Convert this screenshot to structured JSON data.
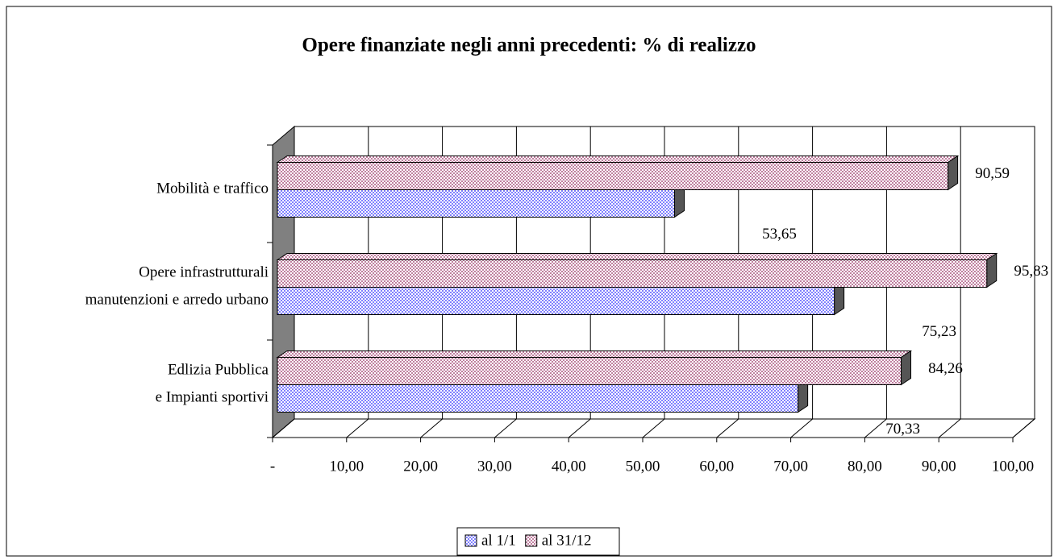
{
  "chart_data": {
    "type": "bar3d_horizontal",
    "title": "Opere finanziate negli anni precedenti: % di realizzo",
    "categories": [
      "Edlizia Pubblica\ne Impianti sportivi",
      "Opere infrastrutturali\nmanutenzioni e arredo urbano",
      "Mobilità e traffico"
    ],
    "series": [
      {
        "name": "al 1/1",
        "color": "#8080ff",
        "values": [
          70.33,
          75.23,
          53.65
        ],
        "value_labels": [
          "70,33",
          "75,23",
          "53,65"
        ]
      },
      {
        "name": "al 31/12",
        "color": "#c080a0",
        "values": [
          84.26,
          95.83,
          90.59
        ],
        "value_labels": [
          "84,26",
          "95,83",
          "90,59"
        ]
      }
    ],
    "xlim": [
      0,
      100
    ],
    "xticks": [
      {
        "value": 0,
        "label": "-"
      },
      {
        "value": 10,
        "label": "10,00"
      },
      {
        "value": 20,
        "label": "20,00"
      },
      {
        "value": 30,
        "label": "30,00"
      },
      {
        "value": 40,
        "label": "40,00"
      },
      {
        "value": 50,
        "label": "50,00"
      },
      {
        "value": 60,
        "label": "60,00"
      },
      {
        "value": 70,
        "label": "70,00"
      },
      {
        "value": 80,
        "label": "80,00"
      },
      {
        "value": 90,
        "label": "90,00"
      },
      {
        "value": 100,
        "label": "100,00"
      }
    ],
    "grid": true,
    "legend": "bottom"
  }
}
